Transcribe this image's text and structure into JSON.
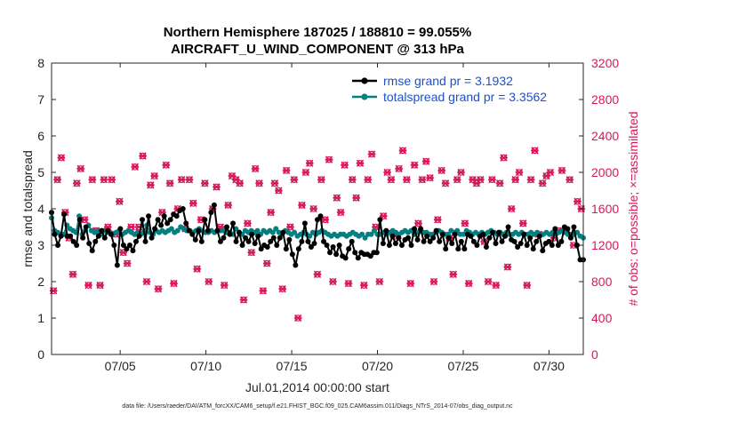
{
  "chart_data": {
    "type": "line",
    "title_line1": "Northern Hemisphere 187025 / 188810 = 99.055%",
    "title_line2": "AIRCRAFT_U_WIND_COMPONENT @ 313 hPa",
    "xlabel": "Jul.01,2014 00:00:00 start",
    "ylabel_left": "rmse and totalspread",
    "ylabel_right": "# of obs: o=possible; ×=assimilated",
    "footer": "data file: /Users/raeder/DAI/ATM_forcXX/CAM6_setup/f.e21.FHIST_BGC.f09_025.CAM6assim.011/Diags_NTrS_2014-07/obs_diag_output.nc",
    "x_range": [
      1,
      32
    ],
    "x_ticks": [
      {
        "value": 5,
        "label": "07/05"
      },
      {
        "value": 10,
        "label": "07/10"
      },
      {
        "value": 15,
        "label": "07/15"
      },
      {
        "value": 20,
        "label": "07/20"
      },
      {
        "value": 25,
        "label": "07/25"
      },
      {
        "value": 30,
        "label": "07/30"
      }
    ],
    "y_left_range": [
      0,
      8
    ],
    "y_left_ticks": [
      "0",
      "1",
      "2",
      "3",
      "4",
      "5",
      "6",
      "7",
      "8"
    ],
    "y_right_range": [
      0,
      3200
    ],
    "y_right_ticks": [
      "0",
      "400",
      "800",
      "1200",
      "1600",
      "2000",
      "2400",
      "2800",
      "3200"
    ],
    "legend": [
      {
        "label": "rmse grand pr = 3.1932",
        "color": "#000000"
      },
      {
        "label": "totalspread grand pr = 3.3562",
        "color": "#008080"
      }
    ],
    "colors": {
      "rmse": "#000000",
      "spread": "#008080",
      "obs": "#d6185a",
      "legend_text": "#1a4fd6",
      "axis_right": "#d6185a"
    },
    "series": [
      {
        "name": "rmse",
        "axis": "left",
        "values": [
          3.9,
          3.3,
          3.0,
          3.25,
          3.85,
          3.25,
          3.25,
          3.1,
          3.0,
          3.7,
          3.2,
          3.5,
          3.05,
          2.85,
          3.1,
          3.25,
          3.4,
          3.2,
          3.4,
          3.3,
          3.0,
          2.45,
          3.45,
          3.0,
          2.9,
          3.0,
          2.85,
          3.1,
          3.25,
          3.7,
          3.1,
          3.8,
          3.2,
          3.45,
          3.7,
          3.55,
          3.8,
          3.6,
          3.7,
          3.85,
          3.8,
          3.95,
          4.0,
          3.6,
          3.4,
          3.3,
          3.15,
          3.4,
          3.1,
          3.7,
          3.4,
          3.9,
          4.1,
          3.4,
          3.1,
          3.2,
          3.5,
          3.3,
          3.6,
          3.1,
          3.35,
          3.0,
          3.2,
          3.1,
          3.3,
          3.05,
          3.25,
          2.9,
          3.0,
          2.95,
          3.1,
          3.2,
          3.0,
          3.2,
          3.35,
          2.9,
          3.15,
          2.75,
          2.45,
          2.9,
          3.1,
          3.6,
          3.1,
          2.95,
          3.05,
          3.7,
          3.8,
          3.1,
          3.0,
          2.8,
          2.95,
          2.75,
          3.0,
          2.7,
          2.65,
          2.9,
          3.1,
          2.8,
          2.65,
          2.8,
          2.75,
          2.75,
          2.7,
          2.8,
          2.8,
          3.7,
          3.05,
          3.4,
          3.0,
          3.25,
          3.05,
          3.2,
          3.0,
          3.15,
          3.2,
          3.0,
          3.45,
          3.15,
          3.45,
          3.1,
          3.25,
          3.1,
          3.2,
          3.4,
          3.1,
          3.3,
          2.9,
          3.2,
          3.05,
          3.3,
          2.9,
          3.1,
          2.9,
          3.3,
          3.25,
          3.1,
          3.0,
          3.25,
          3.3,
          2.95,
          3.2,
          3.35,
          3.05,
          3.35,
          3.1,
          3.25,
          3.5,
          3.15,
          3.1,
          2.95,
          3.05,
          3.3,
          3.0,
          3.2,
          2.9,
          3.1,
          3.25,
          2.85,
          3.05,
          3.1,
          3.0,
          3.45,
          3.0,
          3.1,
          3.5,
          3.45,
          3.2,
          3.5,
          3.0,
          2.6,
          2.6
        ]
      },
      {
        "name": "totalspread",
        "axis": "left",
        "values": [
          3.75,
          3.4,
          3.35,
          3.3,
          3.3,
          3.55,
          3.45,
          3.4,
          3.35,
          3.8,
          3.3,
          3.4,
          3.55,
          3.4,
          3.35,
          3.4,
          3.3,
          3.4,
          3.35,
          3.35,
          3.3,
          3.35,
          3.4,
          3.3,
          3.35,
          3.4,
          3.35,
          3.3,
          3.35,
          3.3,
          3.35,
          3.55,
          3.35,
          3.3,
          3.4,
          3.35,
          3.4,
          3.35,
          3.4,
          3.45,
          3.35,
          3.4,
          3.5,
          3.45,
          3.4,
          3.4,
          3.35,
          3.4,
          3.45,
          3.4,
          3.35,
          3.35,
          3.4,
          3.35,
          3.4,
          3.4,
          3.4,
          3.35,
          3.35,
          3.3,
          3.45,
          3.35,
          3.3,
          3.4,
          3.35,
          3.4,
          3.35,
          3.4,
          3.3,
          3.4,
          3.35,
          3.4,
          3.35,
          3.45,
          3.35,
          3.3,
          3.4,
          3.35,
          3.3,
          3.35,
          3.25,
          3.3,
          3.35,
          3.3,
          3.25,
          3.35,
          3.3,
          3.35,
          3.4,
          3.35,
          3.3,
          3.25,
          3.3,
          3.25,
          3.3,
          3.3,
          3.25,
          3.3,
          3.35,
          3.3,
          3.25,
          3.3,
          3.2,
          3.3,
          3.3,
          3.4,
          3.3,
          3.3,
          3.35,
          3.3,
          3.35,
          3.4,
          3.35,
          3.3,
          3.35,
          3.4,
          3.35,
          3.4,
          3.3,
          3.35,
          3.4,
          3.35,
          3.35,
          3.3,
          3.3,
          3.35,
          3.4,
          3.35,
          3.3,
          3.3,
          3.4,
          3.35,
          3.4,
          3.3,
          3.3,
          3.4,
          3.35,
          3.3,
          3.35,
          3.3,
          3.35,
          3.3,
          3.35,
          3.4,
          3.35,
          3.3,
          3.35,
          3.3,
          3.35,
          3.3,
          3.3,
          3.35,
          3.3,
          3.35,
          3.3,
          3.3,
          3.35,
          3.3,
          3.35,
          3.3,
          3.3,
          3.35,
          3.3,
          3.35,
          3.3,
          3.35,
          3.4,
          3.35,
          3.3,
          3.3,
          3.3,
          3.35,
          3.25,
          3.2
        ]
      },
      {
        "name": "obs_possible",
        "axis": "right",
        "values": [
          700,
          1920,
          2160,
          1560,
          1280,
          880,
          1880,
          2040,
          1480,
          760,
          1920,
          1360,
          760,
          1920,
          1400,
          1920,
          1320,
          1680,
          1120,
          1000,
          1400,
          2060,
          1400,
          2180,
          800,
          1860,
          1960,
          720,
          1560,
          2080,
          1880,
          780,
          1600,
          1920,
          1380,
          1920,
          1660,
          940,
          1480,
          1880,
          800,
          1600,
          1840,
          1400,
          760,
          1640,
          1960,
          1920,
          1880,
          600,
          1440,
          1120,
          2040,
          1880,
          700,
          1000,
          1560,
          1880,
          1800,
          720,
          2020,
          1400,
          1920,
          400,
          1640,
          2000,
          2100,
          1600,
          880,
          1920,
          1480,
          2140,
          800,
          1720,
          1560,
          2080,
          780,
          1920,
          1720,
          2100,
          760,
          1920,
          2200,
          1400,
          800,
          1520,
          2000,
          1920,
          1300,
          2040,
          2240,
          1920,
          780,
          2080,
          1440,
          1920,
          2120,
          1940,
          800,
          1480,
          2020,
          1880,
          1280,
          880,
          1920,
          2000,
          1440,
          780,
          1920,
          1880,
          1920,
          1240,
          800,
          1920,
          760,
          1880,
          2160,
          960,
          1600,
          1920,
          2000,
          1440,
          760,
          1920,
          2240,
          1320,
          1880,
          1960,
          2000,
          1280,
          1360,
          2020,
          1360,
          1920,
          1200,
          1680,
          1600
        ]
      },
      {
        "name": "obs_assimilated",
        "axis": "right",
        "values": [
          700,
          1920,
          2160,
          1560,
          1280,
          880,
          1880,
          2040,
          1480,
          760,
          1920,
          1360,
          760,
          1920,
          1400,
          1920,
          1320,
          1680,
          1120,
          1000,
          1400,
          2060,
          1400,
          2180,
          800,
          1860,
          1960,
          720,
          1560,
          2080,
          1880,
          780,
          1600,
          1920,
          1380,
          1920,
          1660,
          940,
          1480,
          1880,
          800,
          1600,
          1840,
          1400,
          760,
          1640,
          1960,
          1920,
          1880,
          600,
          1440,
          1120,
          2040,
          1880,
          700,
          1000,
          1560,
          1880,
          1800,
          720,
          2020,
          1400,
          1920,
          400,
          1640,
          2000,
          2100,
          1600,
          880,
          1920,
          1480,
          2140,
          800,
          1720,
          1560,
          2080,
          780,
          1920,
          1720,
          2100,
          760,
          1920,
          2200,
          1400,
          800,
          1520,
          2000,
          1920,
          1300,
          2040,
          2240,
          1920,
          780,
          2080,
          1440,
          1920,
          2120,
          1940,
          800,
          1480,
          2020,
          1880,
          1280,
          880,
          1920,
          2000,
          1440,
          780,
          1920,
          1880,
          1920,
          1240,
          800,
          1920,
          760,
          1880,
          2160,
          960,
          1600,
          1920,
          2000,
          1440,
          760,
          1920,
          2240,
          1320,
          1880,
          1960,
          2000,
          1280,
          1360,
          2020,
          1360,
          1920,
          1200,
          1680,
          1600
        ]
      }
    ]
  }
}
